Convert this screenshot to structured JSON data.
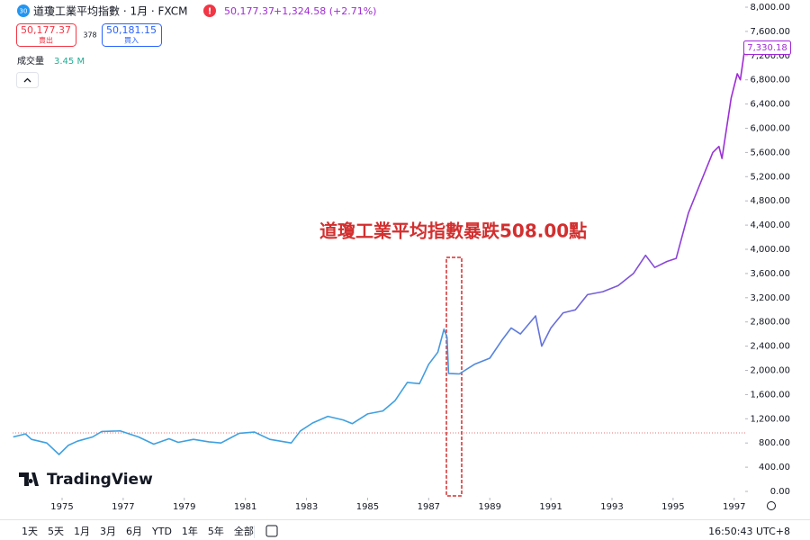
{
  "ui": {
    "symbol_badge": "30",
    "title": "道瓊工業平均指數 · 1月 · FXCM",
    "quote": "50,177.37",
    "change": "+1,324.58 (+2.71%)",
    "sell_price": "50,177.37",
    "sell_label": "賣出",
    "spread": "378",
    "buy_price": "50,181.15",
    "buy_label": "買入",
    "volume_label": "成交量",
    "volume": "3.45 M",
    "watermark": "TradingView",
    "ranges": [
      "1天",
      "5天",
      "1月",
      "3月",
      "6月",
      "YTD",
      "1年",
      "5年",
      "全部"
    ],
    "clock": "16:50:43 UTC+8"
  },
  "chart_data": {
    "type": "line",
    "annotation": "道瓊工業平均指數暴跌508.00點",
    "highlight": {
      "xlim": [
        1987.58,
        1988.08
      ],
      "ylim": [
        -74,
        3866
      ]
    },
    "x": [
      1973.4,
      1973.8,
      1974.0,
      1974.5,
      1974.9,
      1975.2,
      1975.5,
      1976.0,
      1976.3,
      1976.9,
      1977.5,
      1978.0,
      1978.5,
      1978.8,
      1979.3,
      1979.8,
      1980.2,
      1980.8,
      1981.3,
      1981.8,
      1982.5,
      1982.8,
      1983.2,
      1983.7,
      1984.2,
      1984.5,
      1985.0,
      1985.5,
      1985.9,
      1986.3,
      1986.7,
      1987.0,
      1987.3,
      1987.5,
      1987.6,
      1987.65,
      1988.0,
      1988.5,
      1989.0,
      1989.4,
      1989.7,
      1990.0,
      1990.5,
      1990.7,
      1991.0,
      1991.4,
      1991.8,
      1992.2,
      1992.7,
      1993.2,
      1993.7,
      1994.1,
      1994.4,
      1994.8,
      1995.1,
      1995.5,
      1995.9,
      1996.3,
      1996.5,
      1996.6,
      1996.9,
      1997.1,
      1997.2,
      1997.35
    ],
    "values": [
      900,
      950,
      860,
      800,
      610,
      760,
      830,
      900,
      990,
      1000,
      900,
      780,
      870,
      810,
      860,
      820,
      800,
      960,
      980,
      860,
      800,
      1000,
      1130,
      1240,
      1180,
      1120,
      1280,
      1330,
      1500,
      1800,
      1780,
      2100,
      2300,
      2680,
      2550,
      1950,
      1940,
      2100,
      2200,
      2500,
      2700,
      2600,
      2900,
      2400,
      2700,
      2950,
      3000,
      3250,
      3300,
      3400,
      3600,
      3900,
      3700,
      3800,
      3850,
      4600,
      5100,
      5600,
      5700,
      5500,
      6500,
      6900,
      6800,
      7330.18
    ],
    "colors": [
      "#3fa0e0",
      "#a128d6"
    ],
    "last_price": {
      "value": 7330.18,
      "label": "7,330.18"
    },
    "reference_line": 966,
    "xlim": [
      1973.38,
      1997.36
    ],
    "xticks": [
      1975,
      1977,
      1979,
      1981,
      1983,
      1985,
      1987,
      1989,
      1991,
      1993,
      1995,
      1997
    ],
    "ylim": [
      0,
      8000
    ],
    "yticks": [
      {
        "value": 0,
        "label": "0.00"
      },
      {
        "value": 400,
        "label": "400.00"
      },
      {
        "value": 800,
        "label": "800.00"
      },
      {
        "value": 1200,
        "label": "1,200.00"
      },
      {
        "value": 1600,
        "label": "1,600.00"
      },
      {
        "value": 2000,
        "label": "2,000.00"
      },
      {
        "value": 2400,
        "label": "2,400.00"
      },
      {
        "value": 2800,
        "label": "2,800.00"
      },
      {
        "value": 3200,
        "label": "3,200.00"
      },
      {
        "value": 3600,
        "label": "3,600.00"
      },
      {
        "value": 4000,
        "label": "4,000.00"
      },
      {
        "value": 4400,
        "label": "4,400.00"
      },
      {
        "value": 4800,
        "label": "4,800.00"
      },
      {
        "value": 5200,
        "label": "5,200.00"
      },
      {
        "value": 5600,
        "label": "5,600.00"
      },
      {
        "value": 6000,
        "label": "6,000.00"
      },
      {
        "value": 6400,
        "label": "6,400.00"
      },
      {
        "value": 6800,
        "label": "6,800.00"
      },
      {
        "value": 7200,
        "label": "7,200.00"
      },
      {
        "value": 7600,
        "label": "7,600.00"
      },
      {
        "value": 8000,
        "label": "8,000.00"
      }
    ],
    "grid": false
  }
}
